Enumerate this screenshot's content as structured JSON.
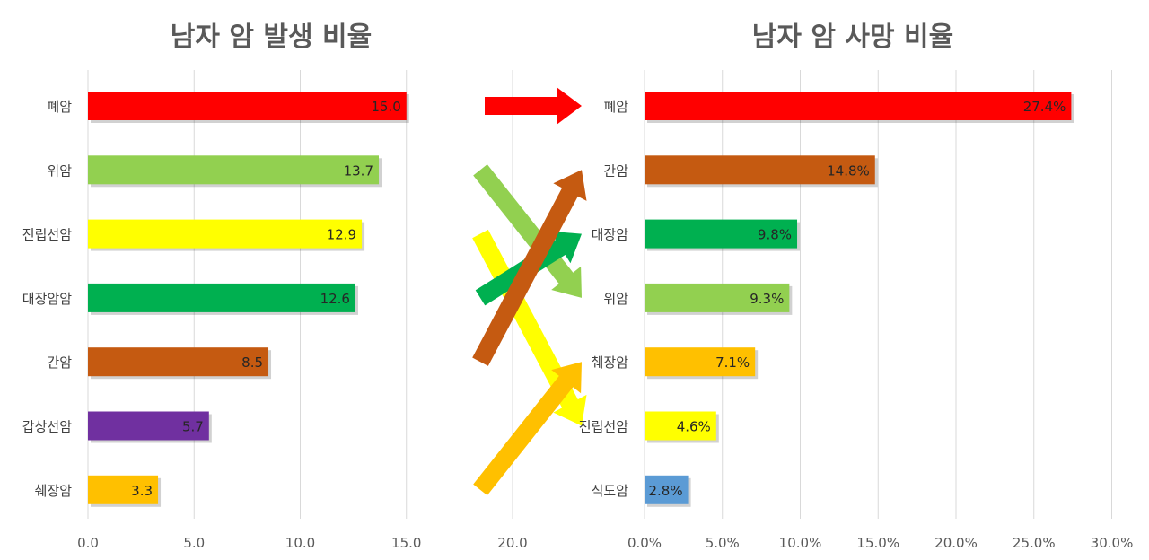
{
  "chart_data": [
    {
      "type": "bar",
      "orientation": "horizontal",
      "title": "남자 암 발생 비율",
      "categories": [
        "폐암",
        "위암",
        "전립선암",
        "대장암암",
        "간암",
        "갑상선암",
        "췌장암"
      ],
      "values": [
        15.0,
        13.7,
        12.9,
        12.6,
        8.5,
        5.7,
        3.3
      ],
      "value_labels": [
        "15.0",
        "13.7",
        "12.9",
        "12.6",
        "8.5",
        "5.7",
        "3.3"
      ],
      "colors": [
        "#ff0000",
        "#92d050",
        "#ffff00",
        "#00b050",
        "#c55a11",
        "#7030a0",
        "#ffc000"
      ],
      "xlim": [
        0,
        20
      ],
      "ticks": [
        0,
        5,
        10,
        15,
        20
      ],
      "tick_labels": [
        "0.0",
        "5.0",
        "10.0",
        "15.0",
        "20.0"
      ],
      "grid": true,
      "xlabel": "",
      "ylabel": ""
    },
    {
      "type": "bar",
      "orientation": "horizontal",
      "title": "남자 암 사망 비율",
      "categories": [
        "폐암",
        "간암",
        "대장암",
        "위암",
        "췌장암",
        "전립선암",
        "식도암"
      ],
      "values": [
        27.4,
        14.8,
        9.8,
        9.3,
        7.1,
        4.6,
        2.8
      ],
      "value_labels": [
        "27.4%",
        "14.8%",
        "9.8%",
        "9.3%",
        "7.1%",
        "4.6%",
        "2.8%"
      ],
      "colors": [
        "#ff0000",
        "#c55a11",
        "#00b050",
        "#92d050",
        "#ffc000",
        "#ffff00",
        "#5b9bd5"
      ],
      "xlim": [
        0,
        30
      ],
      "ticks": [
        0,
        5,
        10,
        15,
        20,
        25,
        30
      ],
      "tick_labels": [
        "0.0%",
        "5.0%",
        "10.0%",
        "15.0%",
        "20.0%",
        "25.0%",
        "30.0%"
      ],
      "grid": true,
      "xlabel": "",
      "ylabel": ""
    }
  ],
  "connector_arrows": [
    {
      "from": "폐암",
      "to": "폐암",
      "color": "#ff0000"
    },
    {
      "from": "위암",
      "to": "위암",
      "color": "#92d050"
    },
    {
      "from": "전립선암",
      "to": "전립선암",
      "color": "#ffff00"
    },
    {
      "from": "대장암암",
      "to": "대장암",
      "color": "#00b050"
    },
    {
      "from": "간암",
      "to": "간암",
      "color": "#c55a11"
    },
    {
      "from": "췌장암",
      "to": "췌장암",
      "color": "#ffc000"
    }
  ]
}
